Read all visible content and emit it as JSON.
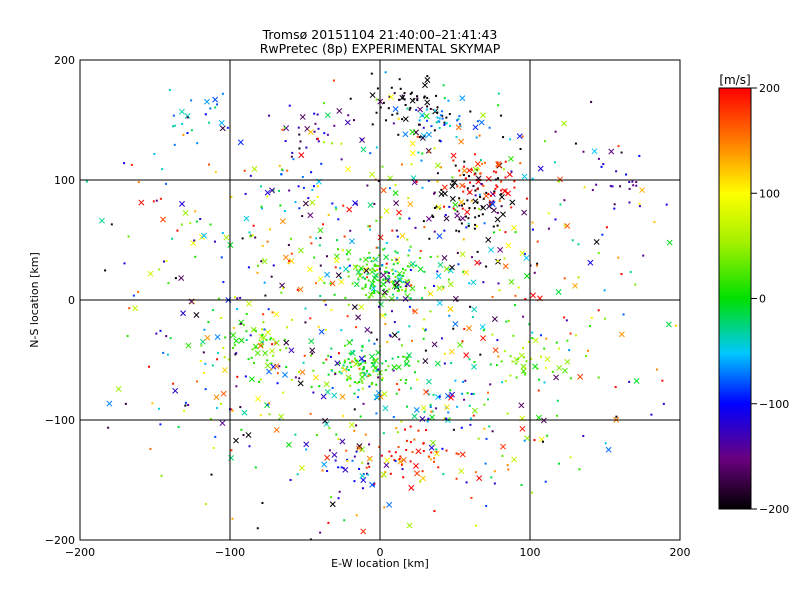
{
  "chart_data": {
    "type": "scatter",
    "title": "Tromsø 20151104 21:40:00–21:41:43",
    "subtitle": "RwPretec (8p) EXPERIMENTAL SKYMAP",
    "xlabel": "E-W location [km]",
    "ylabel": "N-S location [km]",
    "xlim": [
      -200,
      200
    ],
    "ylim": [
      -200,
      200
    ],
    "x_ticks": [
      -200,
      -100,
      0,
      100,
      200
    ],
    "y_ticks": [
      -200,
      -100,
      0,
      100,
      200
    ],
    "grid": true,
    "colorbar": {
      "label": "[m/s]",
      "range": [
        -200,
        200
      ],
      "ticks": [
        -200,
        -100,
        0,
        100,
        200
      ]
    },
    "markers": [
      "dot",
      "cross"
    ],
    "clusters": [
      {
        "x": -10,
        "y": -55,
        "count": 90,
        "velocity": 5
      },
      {
        "x": 20,
        "y": 160,
        "count": 60,
        "velocity": -210
      },
      {
        "x": 40,
        "y": 150,
        "count": 40,
        "velocity": -60
      },
      {
        "x": 60,
        "y": 80,
        "count": 70,
        "velocity": -215
      },
      {
        "x": 70,
        "y": 100,
        "count": 55,
        "velocity": 200
      },
      {
        "x": -58,
        "y": 90,
        "count": 20,
        "velocity": -90
      },
      {
        "x": 20,
        "y": -130,
        "count": 45,
        "velocity": 190
      },
      {
        "x": 0,
        "y": 20,
        "count": 140,
        "velocity": 10
      },
      {
        "x": -80,
        "y": -40,
        "count": 45,
        "velocity": 30
      },
      {
        "x": 100,
        "y": -50,
        "count": 35,
        "velocity": 50
      },
      {
        "x": 40,
        "y": -90,
        "count": 25,
        "velocity": -40
      },
      {
        "x": -40,
        "y": 140,
        "count": 25,
        "velocity": -150
      },
      {
        "x": 160,
        "y": 100,
        "count": 25,
        "velocity": -130
      },
      {
        "x": -120,
        "y": 150,
        "count": 20,
        "velocity": -40
      },
      {
        "x": -20,
        "y": -140,
        "count": 25,
        "velocity": -110
      }
    ]
  }
}
